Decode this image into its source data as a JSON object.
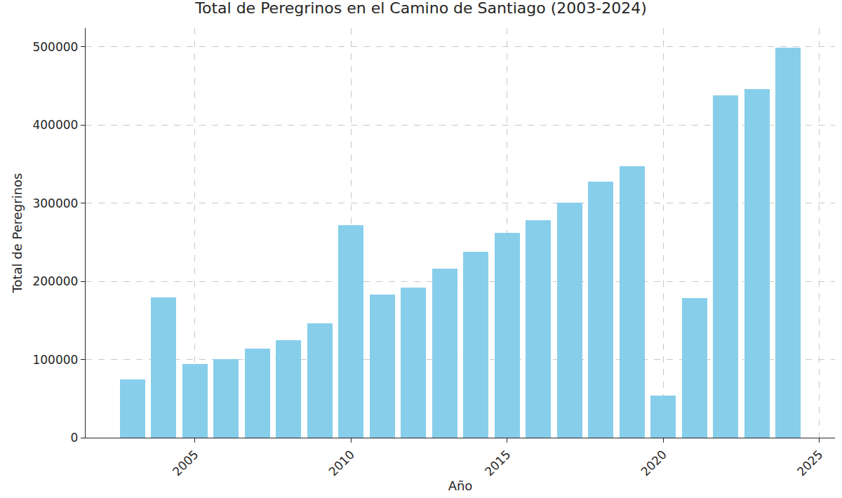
{
  "chart_data": {
    "type": "bar",
    "title": "Total de Peregrinos en el Camino de Santiago (2003-2024)",
    "xlabel": "Año",
    "ylabel": "Total de Peregrinos",
    "x": [
      2003,
      2004,
      2005,
      2006,
      2007,
      2008,
      2009,
      2010,
      2011,
      2012,
      2013,
      2014,
      2015,
      2016,
      2017,
      2018,
      2019,
      2020,
      2021,
      2022,
      2023,
      2024
    ],
    "values": [
      74614,
      179944,
      93924,
      100377,
      114026,
      125141,
      145877,
      272135,
      183366,
      192488,
      215880,
      237886,
      262516,
      277915,
      301036,
      327378,
      347578,
      54144,
      178912,
      438182,
      446035,
      499239
    ],
    "color": "#87ceeb",
    "xlim": [
      2001.5,
      2025.5
    ],
    "xticks": [
      2005,
      2010,
      2015,
      2020,
      2025
    ],
    "ylim": [
      0,
      524201
    ],
    "yticks": [
      0,
      100000,
      200000,
      300000,
      400000,
      500000
    ],
    "grid": true
  }
}
